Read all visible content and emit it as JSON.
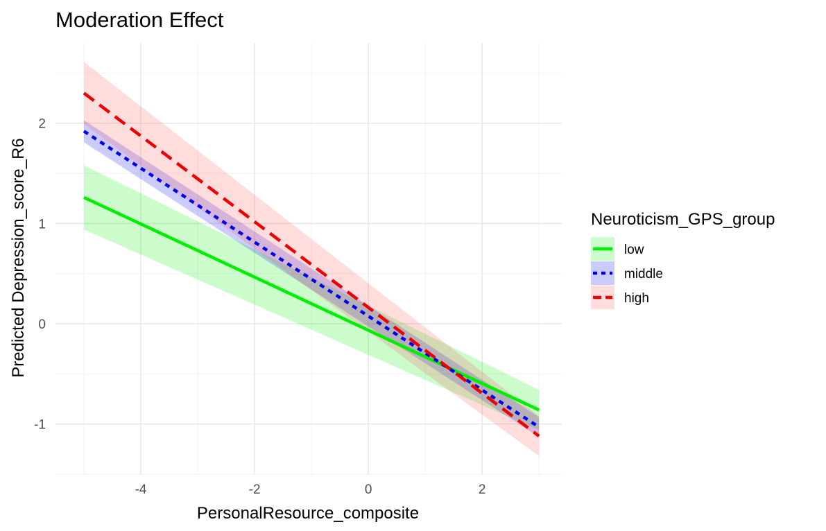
{
  "chart_data": {
    "type": "line",
    "title": "Moderation Effect",
    "xlabel": "PersonalResource_composite",
    "ylabel": "Predicted Depression_score_R6",
    "xlim": [
      -5.5,
      3.4
    ],
    "ylim": [
      -1.5,
      2.8
    ],
    "x_ticks": [
      -4,
      -2,
      0,
      2
    ],
    "x_tick_labels": [
      "-4",
      "-2",
      "0",
      "2"
    ],
    "y_ticks": [
      -1,
      0,
      1,
      2
    ],
    "y_tick_labels": [
      "-1",
      "0",
      "1",
      "2"
    ],
    "grid": true,
    "legend": {
      "title": "Neuroticism_GPS_group",
      "position": "right"
    },
    "x": [
      -5,
      3
    ],
    "series": [
      {
        "name": "low",
        "color": "#00ee00",
        "fill": "#00ee00",
        "dash": "solid",
        "values": [
          1.26,
          -0.86
        ],
        "lower": [
          0.94,
          -1.06
        ],
        "upper": [
          1.58,
          -0.66
        ]
      },
      {
        "name": "middle",
        "color": "#0000ee",
        "fill": "#0000ee",
        "dash": "dotted",
        "values": [
          1.92,
          -1.03
        ],
        "lower": [
          1.81,
          -1.13
        ],
        "upper": [
          2.03,
          -0.93
        ]
      },
      {
        "name": "high",
        "color": "#ee0000",
        "fill": "#ff5555",
        "dash": "dashed",
        "values": [
          2.3,
          -1.12
        ],
        "lower": [
          1.99,
          -1.32
        ],
        "upper": [
          2.61,
          -0.92
        ]
      }
    ]
  }
}
